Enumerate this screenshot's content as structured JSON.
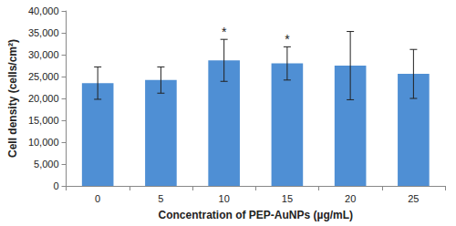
{
  "chart_data": {
    "type": "bar",
    "x_label": "Concentration of PEP-AuNPs (µg/mL)",
    "y_label": "Cell density (cells/cm²)",
    "categories": [
      "0",
      "5",
      "10",
      "15",
      "20",
      "25"
    ],
    "values": [
      23500,
      24200,
      28700,
      28000,
      27500,
      25600
    ],
    "errors": [
      3700,
      3000,
      4800,
      3800,
      7800,
      5600
    ],
    "annotations": [
      {
        "category": "10",
        "text": "*"
      },
      {
        "category": "15",
        "text": "*"
      }
    ],
    "color": "#4f8fd4",
    "ylim": [
      0,
      40000
    ],
    "yticks": [
      0,
      {
        "value": 5000,
        "label": "5,000"
      },
      {
        "value": 10000,
        "label": "10,000"
      },
      {
        "value": 15000,
        "label": "15,000"
      },
      {
        "value": 20000,
        "label": "20,000"
      },
      {
        "value": 25000,
        "label": "25,000"
      },
      {
        "value": 30000,
        "label": "30,000"
      },
      {
        "value": 35000,
        "label": "35,000"
      },
      {
        "value": 40000,
        "label": "40,000"
      }
    ],
    "grid": false
  }
}
